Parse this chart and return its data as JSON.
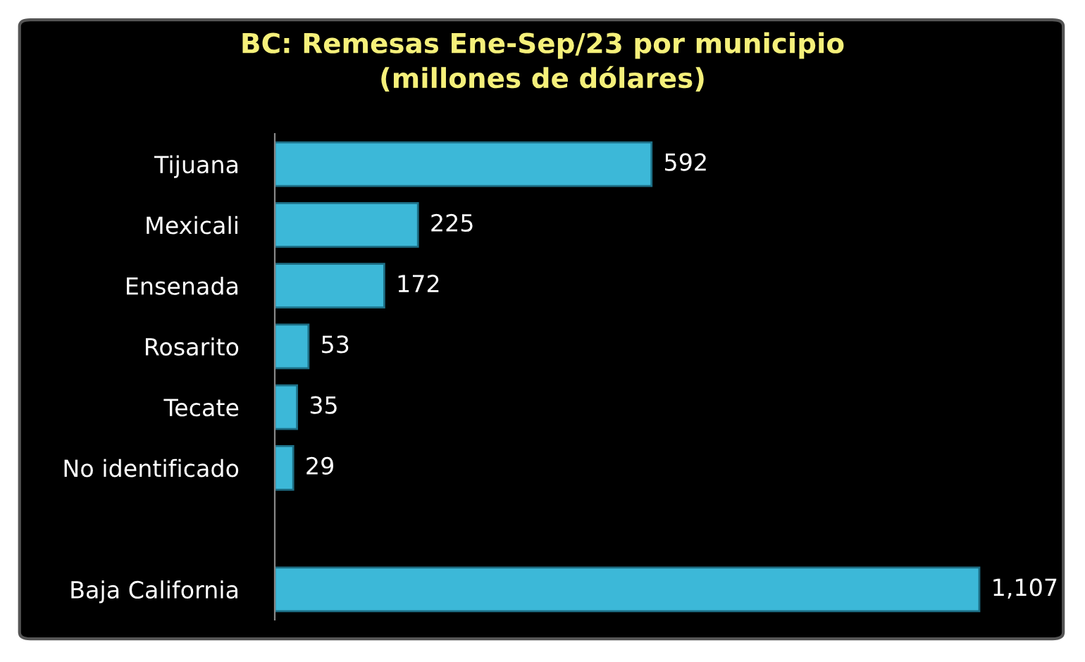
{
  "chart_data": {
    "type": "bar",
    "orientation": "horizontal",
    "title": "BC: Remesas Ene-Sep/23 por municipio\n(millones de dólares)",
    "categories": [
      "Tijuana",
      "Mexicali",
      "Ensenada",
      "Rosarito",
      "Tecate",
      "No identificado",
      null,
      "Baja California"
    ],
    "values": [
      592,
      225,
      172,
      53,
      35,
      29,
      null,
      1107
    ],
    "value_labels": [
      "592",
      "225",
      "172",
      "53",
      "35",
      "29",
      null,
      "1,107"
    ],
    "color": "#3cb8d8",
    "tick_labels": "y",
    "grid": false,
    "legend": false
  }
}
